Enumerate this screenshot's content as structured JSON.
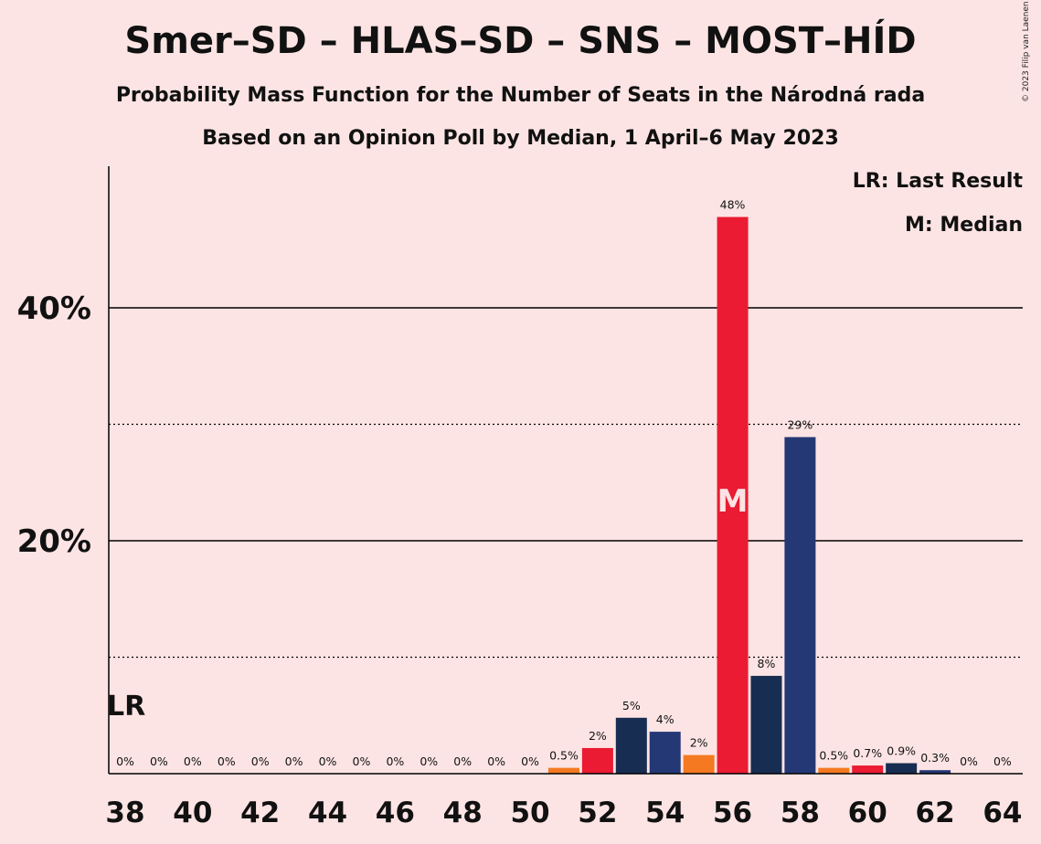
{
  "chart_data": {
    "type": "bar",
    "title": "Smer–SD – HLAS–SD – SNS – MOST–HÍD",
    "subtitle": "Probability Mass Function for the Number of Seats in the Národná rada",
    "subtitle2": "Based on an Opinion Poll by Median, 1 April–6 May 2023",
    "copyright": "© 2023 Filip van Laenen",
    "legend": {
      "lr": "LR: Last Result",
      "m": "M: Median",
      "placement": "top-right"
    },
    "lr_label": "LR",
    "lr_seat": 38,
    "median_label": "M",
    "median_seat": 56,
    "ylim": [
      0,
      52
    ],
    "y_major_ticks": [
      {
        "value": 20,
        "label": "20%"
      },
      {
        "value": 40,
        "label": "40%"
      }
    ],
    "y_minor_ticks": [
      10,
      30
    ],
    "x_tick_labels": [
      "38",
      "40",
      "42",
      "44",
      "46",
      "48",
      "50",
      "52",
      "54",
      "56",
      "58",
      "60",
      "62",
      "64"
    ],
    "x_tick_values": [
      38,
      40,
      42,
      44,
      46,
      48,
      50,
      52,
      54,
      56,
      58,
      60,
      62,
      64
    ],
    "colors": {
      "red": "#ea1b32",
      "orange": "#f47920",
      "navy": "#182d52",
      "blue": "#233875"
    },
    "bars": [
      {
        "seat": 38,
        "value": 0,
        "label": "0%",
        "color": "red"
      },
      {
        "seat": 39,
        "value": 0,
        "label": "0%",
        "color": "red"
      },
      {
        "seat": 40,
        "value": 0,
        "label": "0%",
        "color": "red"
      },
      {
        "seat": 41,
        "value": 0,
        "label": "0%",
        "color": "red"
      },
      {
        "seat": 42,
        "value": 0,
        "label": "0%",
        "color": "red"
      },
      {
        "seat": 43,
        "value": 0,
        "label": "0%",
        "color": "red"
      },
      {
        "seat": 44,
        "value": 0,
        "label": "0%",
        "color": "red"
      },
      {
        "seat": 45,
        "value": 0,
        "label": "0%",
        "color": "red"
      },
      {
        "seat": 46,
        "value": 0,
        "label": "0%",
        "color": "red"
      },
      {
        "seat": 47,
        "value": 0,
        "label": "0%",
        "color": "red"
      },
      {
        "seat": 48,
        "value": 0,
        "label": "0%",
        "color": "red"
      },
      {
        "seat": 49,
        "value": 0,
        "label": "0%",
        "color": "red"
      },
      {
        "seat": 50,
        "value": 0,
        "label": "0%",
        "color": "red"
      },
      {
        "seat": 51,
        "value": 0.5,
        "label": "0.5%",
        "color": "orange"
      },
      {
        "seat": 52,
        "value": 2.2,
        "label": "2%",
        "color": "red"
      },
      {
        "seat": 53,
        "value": 4.8,
        "label": "5%",
        "color": "navy"
      },
      {
        "seat": 54,
        "value": 3.6,
        "label": "4%",
        "color": "blue"
      },
      {
        "seat": 55,
        "value": 1.6,
        "label": "2%",
        "color": "orange"
      },
      {
        "seat": 56,
        "value": 47.8,
        "label": "48%",
        "color": "red"
      },
      {
        "seat": 57,
        "value": 8.4,
        "label": "8%",
        "color": "navy"
      },
      {
        "seat": 58,
        "value": 28.9,
        "label": "29%",
        "color": "blue"
      },
      {
        "seat": 59,
        "value": 0.5,
        "label": "0.5%",
        "color": "orange"
      },
      {
        "seat": 60,
        "value": 0.7,
        "label": "0.7%",
        "color": "red"
      },
      {
        "seat": 61,
        "value": 0.9,
        "label": "0.9%",
        "color": "navy"
      },
      {
        "seat": 62,
        "value": 0.3,
        "label": "0.3%",
        "color": "blue"
      },
      {
        "seat": 63,
        "value": 0,
        "label": "0%",
        "color": "red"
      },
      {
        "seat": 64,
        "value": 0,
        "label": "0%",
        "color": "red"
      }
    ]
  }
}
